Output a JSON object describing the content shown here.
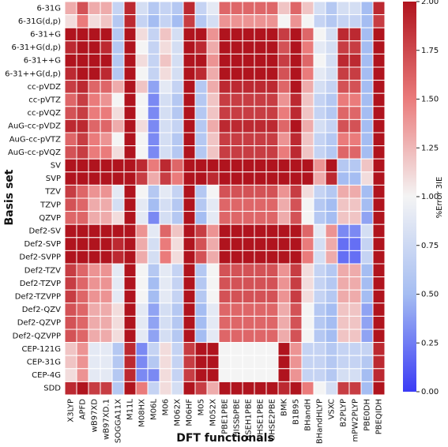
{
  "chart_data": {
    "type": "heatmap",
    "x_label": "DFT functionals",
    "y_label": "Basis set",
    "colorbar_label": "%Error 3IE",
    "columns": [
      "X3LYP",
      "APFD",
      "wB97XD",
      "wB97XD.1",
      "SOGGA11X",
      "M11L",
      "M08HX",
      "M06L",
      "M06",
      "M062X",
      "M06HF",
      "M05",
      "M052X",
      "PBE1PBE",
      "HISSbPBE",
      "HSEH1PBE",
      "OHSE1PBE",
      "OHSE2PBE",
      "BMK",
      "B1B95",
      "BHandH",
      "BHandHLYP",
      "VSXC",
      "B2PLYP",
      "mPW2PLYP",
      "PBE0DH",
      "PBEQIDH"
    ],
    "rows": [
      "6-31G",
      "6-31G(d,p)",
      "6-31+G",
      "6-31+G(d,p)",
      "6-31++G",
      "6-31++G(d,p)",
      "cc-pVDZ",
      "cc-pVTZ",
      "cc-pVQZ",
      "AuG-cc-pVDZ",
      "AuG-cc-pVTZ",
      "AuG-cc-pVQZ",
      "SV",
      "SVP",
      "TZV",
      "TZVP",
      "QZVP",
      "Def2-SV",
      "Def2-SVP",
      "Def2-SVPP",
      "Def2-TZV",
      "Def2-TZVP",
      "Def2-TZVPP",
      "Def2-QZV",
      "Def2-QZVP",
      "Def2-QZVPP",
      "CEP-121G",
      "CEP-31G",
      "CEP-4G",
      "SDD"
    ],
    "values": [
      [
        1.3,
        1.7,
        1.3,
        1.3,
        0.7,
        1.9,
        0.8,
        0.6,
        0.7,
        0.6,
        1.9,
        0.7,
        0.9,
        1.6,
        1.6,
        1.6,
        1.6,
        1.6,
        1.2,
        1.6,
        1.2,
        0.8,
        0.6,
        0.8,
        0.8,
        0.5,
        1.9
      ],
      [
        1.1,
        1.5,
        1.1,
        1.2,
        0.6,
        1.9,
        0.7,
        0.5,
        0.7,
        0.5,
        1.8,
        0.6,
        0.8,
        1.4,
        1.4,
        1.4,
        1.4,
        1.4,
        1.0,
        1.4,
        1.0,
        0.7,
        0.6,
        0.7,
        0.7,
        0.5,
        1.8
      ],
      [
        2.0,
        2.0,
        2.0,
        2.0,
        0.6,
        2.0,
        1.1,
        0.7,
        1.2,
        0.8,
        2.0,
        2.0,
        1.4,
        2.0,
        2.0,
        2.0,
        2.0,
        2.0,
        1.8,
        2.0,
        1.6,
        1.0,
        0.8,
        1.9,
        1.9,
        0.5,
        2.0
      ],
      [
        1.9,
        2.0,
        2.0,
        1.9,
        0.6,
        2.0,
        1.0,
        0.7,
        1.1,
        0.8,
        2.0,
        1.9,
        1.3,
        2.0,
        2.0,
        2.0,
        2.0,
        2.0,
        1.7,
        2.0,
        1.5,
        0.9,
        0.8,
        1.8,
        1.8,
        0.5,
        2.0
      ],
      [
        2.0,
        2.0,
        2.0,
        2.0,
        0.6,
        2.0,
        1.1,
        0.7,
        1.2,
        0.8,
        2.0,
        2.0,
        1.4,
        2.0,
        2.0,
        2.0,
        2.0,
        2.0,
        1.8,
        2.0,
        1.6,
        1.0,
        0.8,
        1.9,
        1.9,
        0.5,
        2.0
      ],
      [
        1.9,
        2.0,
        2.0,
        1.9,
        0.6,
        2.0,
        1.0,
        0.7,
        1.1,
        0.8,
        2.0,
        1.9,
        1.3,
        2.0,
        2.0,
        2.0,
        2.0,
        2.0,
        1.7,
        2.0,
        1.5,
        0.9,
        0.8,
        1.8,
        1.8,
        0.5,
        2.0
      ],
      [
        1.8,
        1.9,
        1.6,
        1.6,
        1.3,
        2.0,
        1.2,
        0.4,
        0.9,
        0.7,
        2.0,
        0.6,
        1.3,
        1.9,
        1.9,
        1.9,
        1.9,
        1.9,
        1.6,
        2.0,
        1.3,
        0.8,
        0.7,
        1.7,
        1.7,
        0.5,
        2.0
      ],
      [
        1.6,
        1.8,
        1.5,
        1.4,
        1.0,
        2.0,
        1.0,
        0.3,
        0.8,
        0.6,
        2.0,
        0.6,
        1.2,
        1.8,
        1.8,
        1.8,
        1.8,
        1.8,
        1.4,
        1.9,
        1.2,
        0.7,
        0.6,
        1.5,
        1.5,
        0.5,
        2.0
      ],
      [
        1.7,
        1.8,
        1.5,
        1.5,
        1.1,
        2.0,
        1.0,
        0.3,
        0.8,
        0.6,
        2.0,
        0.6,
        1.2,
        1.8,
        1.8,
        1.8,
        1.8,
        1.8,
        1.5,
        1.9,
        1.2,
        0.7,
        0.6,
        1.6,
        1.6,
        0.5,
        2.0
      ],
      [
        1.9,
        1.9,
        1.6,
        1.6,
        1.3,
        2.0,
        1.1,
        0.3,
        0.8,
        0.7,
        2.0,
        0.6,
        1.3,
        1.9,
        1.9,
        1.9,
        1.9,
        1.9,
        1.6,
        2.0,
        1.3,
        0.8,
        0.7,
        1.7,
        1.7,
        0.5,
        2.0
      ],
      [
        1.6,
        1.8,
        1.5,
        1.4,
        1.0,
        2.0,
        1.0,
        0.3,
        0.8,
        0.6,
        2.0,
        0.6,
        1.2,
        1.8,
        1.8,
        1.8,
        1.8,
        1.8,
        1.4,
        1.9,
        1.2,
        0.7,
        0.6,
        1.5,
        1.5,
        0.5,
        2.0
      ],
      [
        1.7,
        1.8,
        1.5,
        1.5,
        1.1,
        2.0,
        1.0,
        0.3,
        0.8,
        0.6,
        2.0,
        0.6,
        1.2,
        1.8,
        1.8,
        1.8,
        1.8,
        1.8,
        1.5,
        1.9,
        1.2,
        0.7,
        0.6,
        1.6,
        1.6,
        0.5,
        2.0
      ],
      [
        2.0,
        2.0,
        2.0,
        2.0,
        2.0,
        2.0,
        1.9,
        1.5,
        1.9,
        1.6,
        2.0,
        2.0,
        2.0,
        2.0,
        2.0,
        2.0,
        2.0,
        2.0,
        2.0,
        2.0,
        2.0,
        1.4,
        2.0,
        0.6,
        0.6,
        1.2,
        2.0
      ],
      [
        2.0,
        2.0,
        2.0,
        2.0,
        2.0,
        2.0,
        1.8,
        1.3,
        1.8,
        1.5,
        2.0,
        2.0,
        1.9,
        2.0,
        2.0,
        2.0,
        2.0,
        2.0,
        2.0,
        2.0,
        2.0,
        1.3,
        1.9,
        0.5,
        0.5,
        1.1,
        2.0
      ],
      [
        1.8,
        1.6,
        1.4,
        1.4,
        0.9,
        2.0,
        1.0,
        0.6,
        0.9,
        0.7,
        2.0,
        0.6,
        1.0,
        1.7,
        1.7,
        1.7,
        1.7,
        1.7,
        1.4,
        1.8,
        1.1,
        0.7,
        0.6,
        1.3,
        1.3,
        0.5,
        2.0
      ],
      [
        1.7,
        1.6,
        1.3,
        1.3,
        0.8,
        2.0,
        0.9,
        0.5,
        0.8,
        0.6,
        2.0,
        0.6,
        0.9,
        1.6,
        1.6,
        1.6,
        1.6,
        1.6,
        1.3,
        1.7,
        1.0,
        0.6,
        0.5,
        1.2,
        1.2,
        0.5,
        2.0
      ],
      [
        1.6,
        1.6,
        1.3,
        1.3,
        1.1,
        2.0,
        0.9,
        0.3,
        0.8,
        0.6,
        2.0,
        0.5,
        0.9,
        1.6,
        1.6,
        1.6,
        1.6,
        1.6,
        1.3,
        1.7,
        1.0,
        0.6,
        0.5,
        1.2,
        1.2,
        0.4,
        2.0
      ],
      [
        2.0,
        2.0,
        2.0,
        2.0,
        2.0,
        2.0,
        1.4,
        0.9,
        1.6,
        1.2,
        2.0,
        1.8,
        1.4,
        2.0,
        2.0,
        2.0,
        2.0,
        2.0,
        2.0,
        2.0,
        1.6,
        0.9,
        1.4,
        0.3,
        0.3,
        0.8,
        2.0
      ],
      [
        2.0,
        2.0,
        2.0,
        2.0,
        1.9,
        2.0,
        1.3,
        0.8,
        1.5,
        1.1,
        2.0,
        1.7,
        1.3,
        2.0,
        2.0,
        2.0,
        2.0,
        2.0,
        2.0,
        2.0,
        1.5,
        0.8,
        1.3,
        0.2,
        0.2,
        0.7,
        2.0
      ],
      [
        2.0,
        2.0,
        2.0,
        2.0,
        1.9,
        2.0,
        1.3,
        0.8,
        1.5,
        1.1,
        2.0,
        1.7,
        1.3,
        2.0,
        2.0,
        2.0,
        2.0,
        2.0,
        2.0,
        2.0,
        1.5,
        0.8,
        1.3,
        0.2,
        0.2,
        0.7,
        2.0
      ],
      [
        1.8,
        1.6,
        1.4,
        1.4,
        0.9,
        2.0,
        1.0,
        0.6,
        0.9,
        0.7,
        2.0,
        0.6,
        1.0,
        1.7,
        1.7,
        1.7,
        1.7,
        1.7,
        1.4,
        1.8,
        1.1,
        0.7,
        0.6,
        1.3,
        1.3,
        0.5,
        2.0
      ],
      [
        1.8,
        1.6,
        1.4,
        1.4,
        0.9,
        2.0,
        1.0,
        0.5,
        0.9,
        0.7,
        2.0,
        0.6,
        1.0,
        1.7,
        1.7,
        1.7,
        1.7,
        1.7,
        1.4,
        1.8,
        1.1,
        0.7,
        0.6,
        1.3,
        1.3,
        0.5,
        2.0
      ],
      [
        1.8,
        1.6,
        1.4,
        1.4,
        0.9,
        2.0,
        1.0,
        0.5,
        0.9,
        0.7,
        2.0,
        0.6,
        1.0,
        1.7,
        1.7,
        1.7,
        1.7,
        1.7,
        1.4,
        1.8,
        1.1,
        0.7,
        0.6,
        1.3,
        1.3,
        0.5,
        2.0
      ],
      [
        1.7,
        1.6,
        1.3,
        1.3,
        1.1,
        2.0,
        0.9,
        0.4,
        0.8,
        0.6,
        2.0,
        0.5,
        0.9,
        1.6,
        1.6,
        1.6,
        1.6,
        1.6,
        1.3,
        1.7,
        1.0,
        0.6,
        0.5,
        1.2,
        1.2,
        0.4,
        2.0
      ],
      [
        1.7,
        1.6,
        1.3,
        1.3,
        1.1,
        2.0,
        0.9,
        0.4,
        0.8,
        0.6,
        2.0,
        0.5,
        0.9,
        1.6,
        1.6,
        1.6,
        1.6,
        1.6,
        1.3,
        1.7,
        1.0,
        0.6,
        0.5,
        1.2,
        1.2,
        0.4,
        2.0
      ],
      [
        1.7,
        1.6,
        1.3,
        1.3,
        1.1,
        2.0,
        0.9,
        0.4,
        0.8,
        0.6,
        2.0,
        0.5,
        0.9,
        1.6,
        1.6,
        1.6,
        1.6,
        1.6,
        1.3,
        1.7,
        1.0,
        0.6,
        0.5,
        1.2,
        1.2,
        0.4,
        2.0
      ],
      [
        1.2,
        1.4,
        0.9,
        0.9,
        0.6,
        1.9,
        0.3,
        0.7,
        1.1,
        0.7,
        1.8,
        2.0,
        2.0,
        1.0,
        1.0,
        1.0,
        1.0,
        1.0,
        2.0,
        1.4,
        0.7,
        0.7,
        0.6,
        0.7,
        0.7,
        0.7,
        1.9
      ],
      [
        1.2,
        1.4,
        0.9,
        0.9,
        0.6,
        1.9,
        0.3,
        0.6,
        1.1,
        0.7,
        1.8,
        2.0,
        2.0,
        1.0,
        1.0,
        1.0,
        1.0,
        1.0,
        2.0,
        1.4,
        0.7,
        0.7,
        0.6,
        0.7,
        0.7,
        0.6,
        1.9
      ],
      [
        1.1,
        1.4,
        0.9,
        0.9,
        0.6,
        1.9,
        0.3,
        0.3,
        1.1,
        0.7,
        1.8,
        2.0,
        2.0,
        1.0,
        1.0,
        1.0,
        1.0,
        1.0,
        2.0,
        1.4,
        0.7,
        0.7,
        0.6,
        0.8,
        0.8,
        0.5,
        1.9
      ],
      [
        1.9,
        2.0,
        1.8,
        1.8,
        0.6,
        2.0,
        1.5,
        0.7,
        1.1,
        0.8,
        2.0,
        1.8,
        1.3,
        2.0,
        2.0,
        2.0,
        2.0,
        2.0,
        1.9,
        2.0,
        1.5,
        1.0,
        0.8,
        1.8,
        1.8,
        0.5,
        2.0
      ]
    ],
    "zlim": [
      0,
      2
    ],
    "colorscale": [
      "#3b3bf5",
      "#a5bdf2",
      "#f4f4f4",
      "#ea7b7b",
      "#b0141e"
    ],
    "cticks": [
      {
        "value": 0,
        "label": "0.00"
      },
      {
        "value": 0.25,
        "label": "0.25"
      },
      {
        "value": 0.5,
        "label": "0.50"
      },
      {
        "value": 0.75,
        "label": "0.75"
      },
      {
        "value": 1,
        "label": "1.00"
      },
      {
        "value": 1.25,
        "label": "1.25"
      },
      {
        "value": 1.5,
        "label": "1.50"
      },
      {
        "value": 1.75,
        "label": "1.75"
      },
      {
        "value": 2,
        "label": "2.00"
      }
    ]
  }
}
